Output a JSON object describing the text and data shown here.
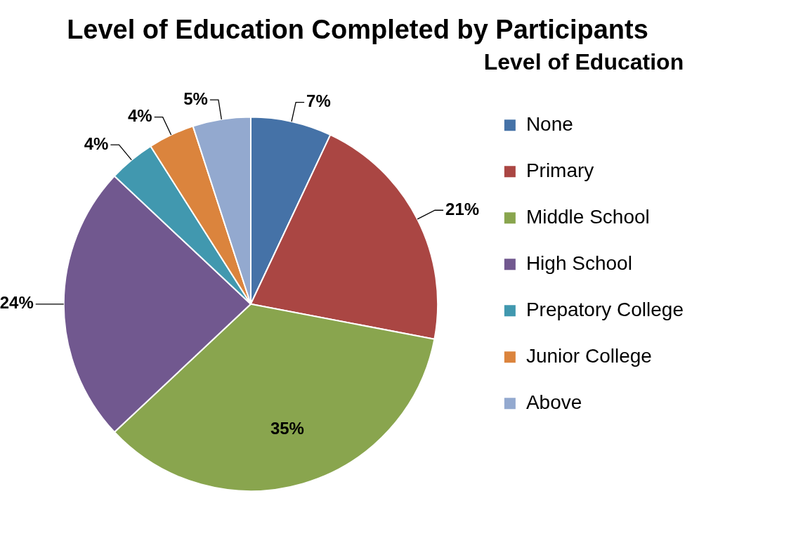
{
  "chart_data": {
    "type": "pie",
    "title": "Level of Education Completed by Participants",
    "legend_title": "Level of Education",
    "categories": [
      "None",
      "Primary",
      "Middle School",
      "High School",
      "Prepatory College",
      "Junior College",
      "Above"
    ],
    "values": [
      7,
      21,
      35,
      24,
      4,
      4,
      5
    ],
    "colors": [
      "#4572a7",
      "#aa4643",
      "#89a54e",
      "#71588f",
      "#4198af",
      "#db843d",
      "#93a9cf"
    ],
    "value_labels": [
      "7%",
      "21%",
      "35%",
      "24%",
      "4%",
      "4%",
      "5%"
    ],
    "legend": "right"
  }
}
